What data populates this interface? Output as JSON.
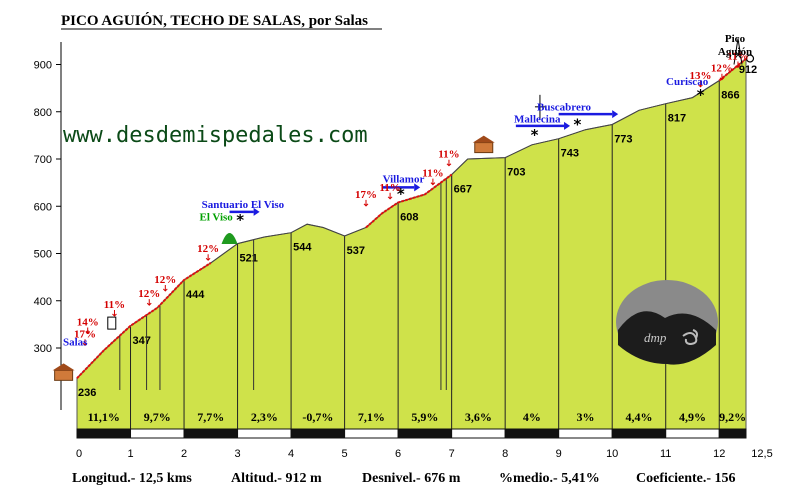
{
  "title": "PICO AGUIÓN, TECHO DE SALAS, por Salas",
  "website": "www.desdemispedales.com",
  "logo_text": "dmp",
  "colors": {
    "fill": "#cfe24a",
    "grade_line": "#e01010",
    "place": "#1a1ae0",
    "green_place": "#00a000",
    "pct": "#d40000",
    "band_dark": "#111111",
    "band_light": "#ffffff"
  },
  "chart_data": {
    "type": "area",
    "title": "PICO AGUIÓN, TECHO DE SALAS, por Salas",
    "xlabel": "",
    "ylabel": "",
    "x_unit": "km",
    "y_unit": "m",
    "xlim": [
      0,
      12.5
    ],
    "ylim": [
      200,
      920
    ],
    "x_ticks": [
      "0",
      "1",
      "2",
      "3",
      "4",
      "5",
      "6",
      "7",
      "8",
      "9",
      "10",
      "11",
      "12",
      "12,5"
    ],
    "y_ticks": [
      "300",
      "400",
      "500",
      "600",
      "700",
      "800",
      "900"
    ],
    "profile": [
      {
        "x": 0,
        "y": 236
      },
      {
        "x": 0.5,
        "y": 295
      },
      {
        "x": 1,
        "y": 347
      },
      {
        "x": 1.5,
        "y": 385
      },
      {
        "x": 2,
        "y": 444
      },
      {
        "x": 2.5,
        "y": 480
      },
      {
        "x": 3,
        "y": 521
      },
      {
        "x": 3.5,
        "y": 535
      },
      {
        "x": 4,
        "y": 544
      },
      {
        "x": 4.3,
        "y": 562
      },
      {
        "x": 4.6,
        "y": 555
      },
      {
        "x": 5,
        "y": 537
      },
      {
        "x": 5.4,
        "y": 555
      },
      {
        "x": 5.7,
        "y": 585
      },
      {
        "x": 6,
        "y": 608
      },
      {
        "x": 6.5,
        "y": 625
      },
      {
        "x": 7,
        "y": 667
      },
      {
        "x": 7.3,
        "y": 700
      },
      {
        "x": 8,
        "y": 703
      },
      {
        "x": 8.5,
        "y": 730
      },
      {
        "x": 9,
        "y": 743
      },
      {
        "x": 9.5,
        "y": 762
      },
      {
        "x": 10,
        "y": 773
      },
      {
        "x": 10.5,
        "y": 803
      },
      {
        "x": 11,
        "y": 817
      },
      {
        "x": 11.5,
        "y": 830
      },
      {
        "x": 12,
        "y": 866
      },
      {
        "x": 12.5,
        "y": 912
      }
    ],
    "km_altitudes": [
      {
        "x": 0,
        "label": "236"
      },
      {
        "x": 1,
        "label": "347"
      },
      {
        "x": 2,
        "label": "444"
      },
      {
        "x": 3,
        "label": "521"
      },
      {
        "x": 4,
        "label": "544"
      },
      {
        "x": 5,
        "label": "537"
      },
      {
        "x": 6,
        "label": "608"
      },
      {
        "x": 7,
        "label": "667"
      },
      {
        "x": 8,
        "label": "703"
      },
      {
        "x": 9,
        "label": "743"
      },
      {
        "x": 10,
        "label": "773"
      },
      {
        "x": 11,
        "label": "817"
      },
      {
        "x": 12,
        "label": "866"
      },
      {
        "x": 12.5,
        "label": "912"
      }
    ],
    "segment_gradients": [
      "11,1%",
      "9,7%",
      "7,7%",
      "2,3%",
      "-0,7%",
      "7,1%",
      "5,9%",
      "3,6%",
      "4%",
      "3%",
      "4,4%",
      "4,9%",
      "9,2%"
    ],
    "peak_gradients": [
      {
        "x": 0.15,
        "y": 310,
        "label": "17%"
      },
      {
        "x": 0.2,
        "y": 335,
        "label": "14%"
      },
      {
        "x": 0.7,
        "y": 372,
        "label": "11%"
      },
      {
        "x": 1.35,
        "y": 395,
        "label": "12%"
      },
      {
        "x": 1.65,
        "y": 425,
        "label": "12%"
      },
      {
        "x": 2.45,
        "y": 490,
        "label": "12%"
      },
      {
        "x": 5.4,
        "y": 605,
        "label": "17%"
      },
      {
        "x": 5.85,
        "y": 620,
        "label": "11%"
      },
      {
        "x": 6.65,
        "y": 650,
        "label": "11%"
      },
      {
        "x": 6.95,
        "y": 690,
        "label": "11%"
      },
      {
        "x": 11.65,
        "y": 857,
        "label": "13%"
      },
      {
        "x": 12.05,
        "y": 872,
        "label": "12%"
      },
      {
        "x": 12.35,
        "y": 898,
        "label": "11%"
      }
    ],
    "places": [
      {
        "label": "Salas",
        "x": 0,
        "y": 305
      },
      {
        "label": "Santuario El Viso",
        "x": 3.1,
        "y": 596
      },
      {
        "label": "El Viso",
        "x": 2.6,
        "y": 570,
        "color": "green"
      },
      {
        "label": "Villamor",
        "x": 6.1,
        "y": 650
      },
      {
        "label": "Mallecina",
        "x": 8.6,
        "y": 777
      },
      {
        "label": "Buscabrero",
        "x": 9.1,
        "y": 803
      },
      {
        "label": "Curiscao",
        "x": 11.4,
        "y": 857
      }
    ],
    "summit": {
      "line1": "Pico",
      "line2": "Aguión"
    },
    "grid": false,
    "legend": "none"
  },
  "footer": {
    "length": "Longitud.- 12,5 kms",
    "altitude": "Altitud.- 912 m",
    "gain": "Desnivel.- 676 m",
    "mean": "%medio.- 5,41%",
    "coef": "Coeficiente.- 156"
  }
}
